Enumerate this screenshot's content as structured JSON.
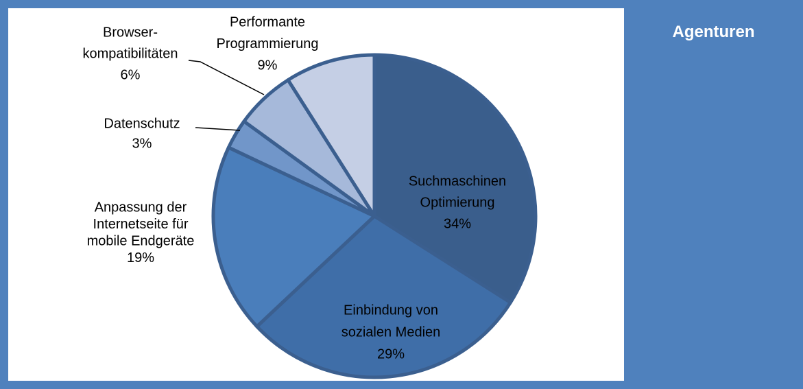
{
  "panel_title": "Agenturen",
  "chart_data": {
    "type": "pie",
    "categories": [
      [
        "Suchmaschinen",
        "Optimierung"
      ],
      [
        "Einbindung von",
        "sozialen Medien"
      ],
      [
        "Anpassung der",
        "Internetseite  für",
        "mobile Endgeräte"
      ],
      [
        "Datenschutz"
      ],
      [
        "Browser-",
        "kompatibilitäten"
      ],
      [
        "Performante",
        "Programmierung"
      ]
    ],
    "values": [
      34,
      29,
      19,
      3,
      6,
      9
    ],
    "value_labels": [
      "34%",
      "29%",
      "19%",
      "3%",
      "6%",
      "9%"
    ],
    "colors": [
      "#3a5e8c",
      "#3f6ea8",
      "#4a7ebb",
      "#7196c9",
      "#a6b9da",
      "#c5cfe5"
    ]
  }
}
